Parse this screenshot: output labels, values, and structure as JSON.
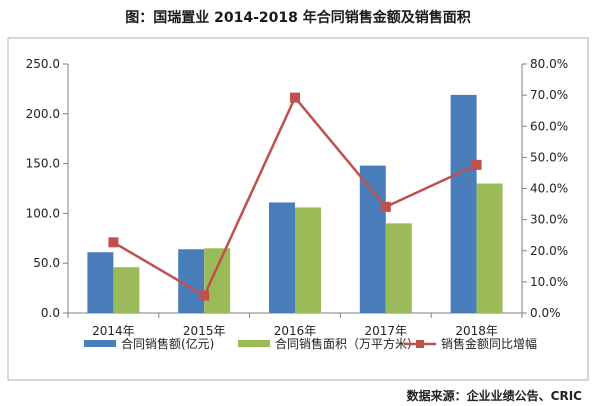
{
  "chart_data": {
    "type": "bar",
    "title": "图：国瑞置业 2014-2018 年合同销售金额及销售面积",
    "categories": [
      "2014年",
      "2015年",
      "2016年",
      "2017年",
      "2018年"
    ],
    "series": [
      {
        "name": "合同销售额(亿元)",
        "kind": "bar",
        "axis": "left",
        "color": "#4a7ebb",
        "values": [
          61,
          64,
          111,
          148,
          219
        ]
      },
      {
        "name": "合同销售面积（万平方米）",
        "kind": "bar",
        "axis": "left",
        "color": "#9bbb59",
        "values": [
          46,
          65,
          106,
          90,
          130
        ]
      },
      {
        "name": "销售金额同比增幅",
        "kind": "line",
        "axis": "right",
        "color": "#c0504d",
        "values": [
          22.7,
          5.6,
          69.2,
          34.1,
          47.6
        ]
      }
    ],
    "yleft": {
      "ylim": [
        0,
        250
      ],
      "ticks": [
        "0.0",
        "50.0",
        "100.0",
        "150.0",
        "200.0",
        "250.0"
      ]
    },
    "yright": {
      "ylim": [
        0,
        80
      ],
      "ticks": [
        "0.0%",
        "10.0%",
        "20.0%",
        "30.0%",
        "40.0%",
        "50.0%",
        "60.0%",
        "70.0%",
        "80.0%"
      ]
    },
    "legend": "bottom",
    "grid": false
  },
  "source": "数据来源：企业业绩公告、CRIC"
}
